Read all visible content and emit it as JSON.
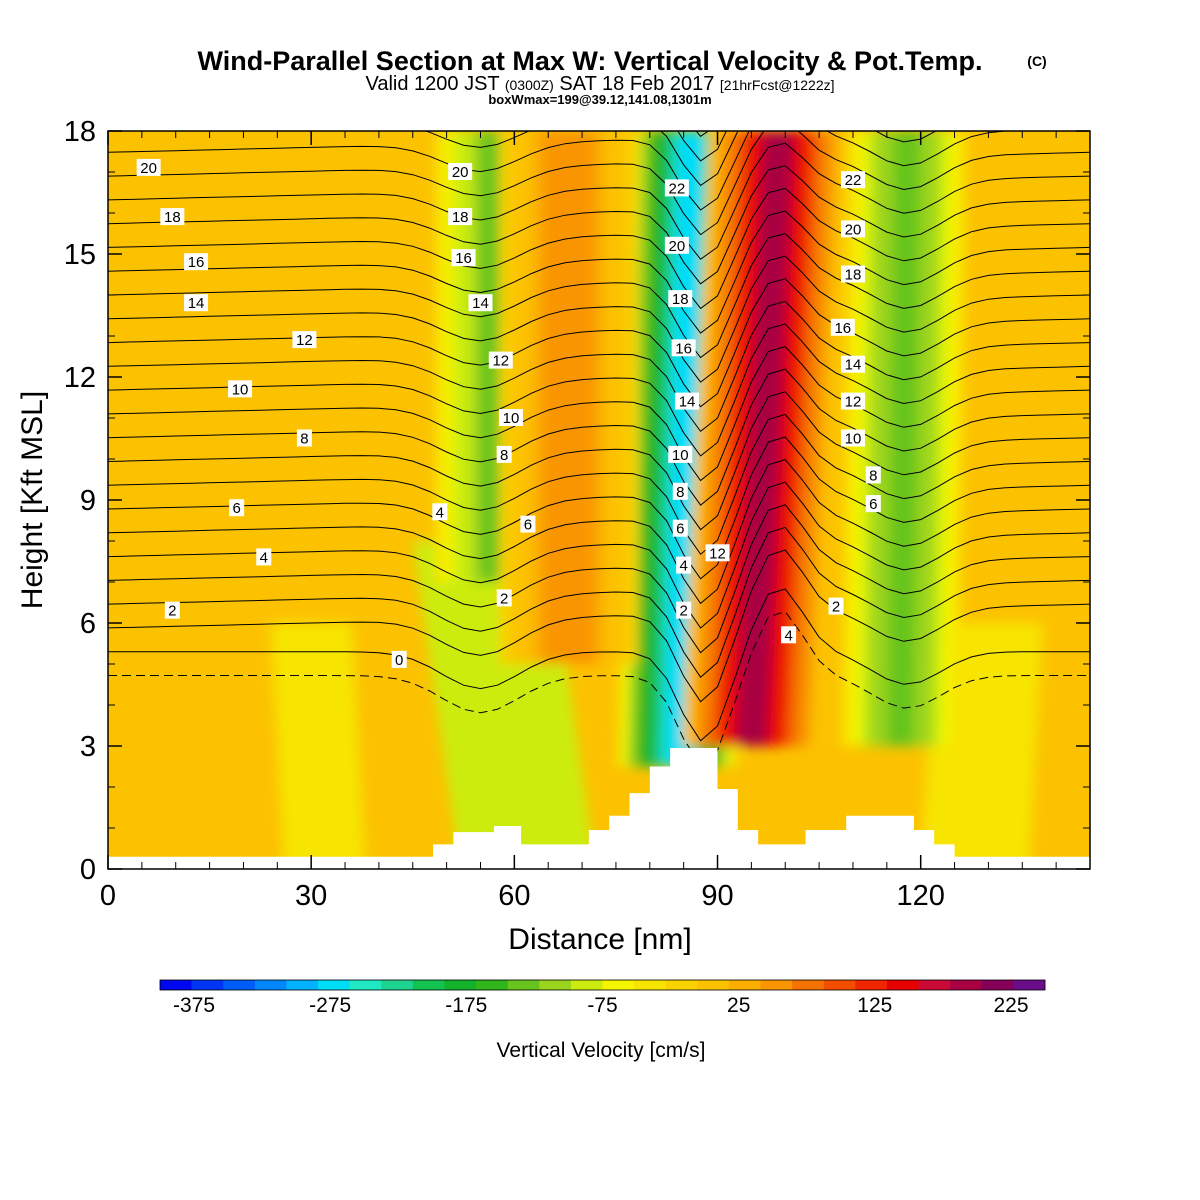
{
  "title": {
    "main": "Wind-Parallel Section at Max W: Vertical Velocity & Pot.Temp.",
    "copyright": "(C)",
    "valid_prefix": "Valid 1200 JST",
    "valid_z": "(0300Z)",
    "valid_date": "SAT 18 Feb 2017",
    "valid_fcst": "[21hrFcst@1222z]",
    "box_info": "boxWmax=199@39.12,141.08,1301m"
  },
  "chart_data": {
    "type": "heatmap",
    "xlabel": "Distance [nm]",
    "ylabel": "Height [Kft MSL]",
    "xlim": [
      0,
      145
    ],
    "ylim": [
      0,
      18
    ],
    "x_ticks": [
      0,
      30,
      60,
      90,
      120
    ],
    "y_ticks": [
      0,
      3,
      6,
      9,
      12,
      15,
      18
    ],
    "colorbar": {
      "label": "Vertical Velocity [cm/s]",
      "min": -400,
      "max": 250,
      "step": 25,
      "tick_values": [
        -375,
        -275,
        -175,
        -75,
        25,
        125,
        225
      ],
      "tick_labels": [
        "-375",
        "-275",
        "-175",
        "-75",
        "25",
        "125",
        "225"
      ],
      "colors": [
        "#0008ef",
        "#0035f5",
        "#005dfa",
        "#0087fd",
        "#00b2ff",
        "#00ddf7",
        "#1fe8c2",
        "#1ed38f",
        "#12c44f",
        "#12b22a",
        "#30b51a",
        "#66c41c",
        "#9bd41d",
        "#ccec10",
        "#f6f500",
        "#f7e400",
        "#fad200",
        "#fcc200",
        "#fbad00",
        "#f99500",
        "#f57200",
        "#f34e00",
        "#ef2600",
        "#e60000",
        "#c90a36",
        "#a80042",
        "#86005a",
        "#6b0c8a"
      ]
    },
    "shaded_field": {
      "name": "Vertical Velocity",
      "units": "cm/s",
      "features": [
        {
          "kind": "downdraft",
          "x_start": 84,
          "x_top": 86,
          "min_value": -260,
          "height_range": [
            2.5,
            18
          ]
        },
        {
          "kind": "updraft",
          "x_start": 95,
          "x_top": 99,
          "max_value": 230,
          "height_range": [
            3,
            18
          ]
        },
        {
          "kind": "downdraft",
          "x_start": 117,
          "x_top": 118,
          "min_value": -120,
          "height_range": [
            3,
            18
          ]
        },
        {
          "kind": "downdraft",
          "x_start": 57,
          "x_top": 57,
          "min_value": -110,
          "height_range": [
            7,
            18
          ]
        },
        {
          "kind": "updraft",
          "x_start": 68,
          "x_top": 68,
          "max_value": 90,
          "height_range": [
            5,
            18
          ]
        }
      ]
    },
    "potential_temperature_contours": {
      "name": "Pot.Temp.",
      "units": "°C",
      "interval": 1,
      "levels": [
        -1,
        0,
        1,
        2,
        3,
        4,
        5,
        6,
        7,
        8,
        9,
        10,
        11,
        12,
        13,
        14,
        15,
        16,
        17,
        18,
        19,
        20,
        21,
        22,
        23,
        24,
        25
      ],
      "labels": [
        {
          "text": "20",
          "x": 6,
          "y": 17.1
        },
        {
          "text": "18",
          "x": 9.5,
          "y": 15.9
        },
        {
          "text": "16",
          "x": 13,
          "y": 14.8
        },
        {
          "text": "14",
          "x": 13,
          "y": 13.8
        },
        {
          "text": "12",
          "x": 29,
          "y": 12.9
        },
        {
          "text": "10",
          "x": 19.5,
          "y": 11.7
        },
        {
          "text": "8",
          "x": 29,
          "y": 10.5
        },
        {
          "text": "6",
          "x": 19,
          "y": 8.8
        },
        {
          "text": "4",
          "x": 23,
          "y": 7.6
        },
        {
          "text": "2",
          "x": 9.5,
          "y": 6.3
        },
        {
          "text": "0",
          "x": 43,
          "y": 5.1
        },
        {
          "text": "20",
          "x": 52,
          "y": 17.0
        },
        {
          "text": "18",
          "x": 52,
          "y": 15.9
        },
        {
          "text": "16",
          "x": 52.5,
          "y": 14.9
        },
        {
          "text": "14",
          "x": 55,
          "y": 13.8
        },
        {
          "text": "12",
          "x": 58,
          "y": 12.4
        },
        {
          "text": "10",
          "x": 59.5,
          "y": 11.0
        },
        {
          "text": "8",
          "x": 58.5,
          "y": 10.1
        },
        {
          "text": "4",
          "x": 49,
          "y": 8.7
        },
        {
          "text": "6",
          "x": 62,
          "y": 8.4
        },
        {
          "text": "2",
          "x": 58.5,
          "y": 6.6
        },
        {
          "text": "22",
          "x": 84,
          "y": 16.6
        },
        {
          "text": "20",
          "x": 84,
          "y": 15.2
        },
        {
          "text": "18",
          "x": 84.5,
          "y": 13.9
        },
        {
          "text": "16",
          "x": 85,
          "y": 12.7
        },
        {
          "text": "14",
          "x": 85.5,
          "y": 11.4
        },
        {
          "text": "10",
          "x": 84.5,
          "y": 10.1
        },
        {
          "text": "8",
          "x": 84.5,
          "y": 9.2
        },
        {
          "text": "6",
          "x": 84.5,
          "y": 8.3
        },
        {
          "text": "12",
          "x": 90,
          "y": 7.7
        },
        {
          "text": "4",
          "x": 85,
          "y": 7.4
        },
        {
          "text": "2",
          "x": 85,
          "y": 6.3
        },
        {
          "text": "4",
          "x": 100.5,
          "y": 5.7
        },
        {
          "text": "2",
          "x": 107.5,
          "y": 6.4
        },
        {
          "text": "22",
          "x": 110,
          "y": 16.8
        },
        {
          "text": "20",
          "x": 110,
          "y": 15.6
        },
        {
          "text": "18",
          "x": 110,
          "y": 14.5
        },
        {
          "text": "16",
          "x": 108.5,
          "y": 13.2
        },
        {
          "text": "14",
          "x": 110,
          "y": 12.3
        },
        {
          "text": "12",
          "x": 110,
          "y": 11.4
        },
        {
          "text": "10",
          "x": 110,
          "y": 10.5
        },
        {
          "text": "8",
          "x": 113,
          "y": 9.6
        },
        {
          "text": "6",
          "x": 113,
          "y": 8.9
        }
      ]
    },
    "terrain": {
      "description": "blocky terrain profile at bottom (height kft vs distance nm)",
      "profile": [
        [
          0,
          0.3
        ],
        [
          48,
          0.3
        ],
        [
          48,
          0.6
        ],
        [
          51,
          0.6
        ],
        [
          51,
          0.9
        ],
        [
          57,
          0.9
        ],
        [
          57,
          1.05
        ],
        [
          61,
          1.05
        ],
        [
          61,
          0.6
        ],
        [
          71,
          0.6
        ],
        [
          71,
          0.95
        ],
        [
          74,
          0.95
        ],
        [
          74,
          1.3
        ],
        [
          77,
          1.3
        ],
        [
          77,
          1.85
        ],
        [
          80,
          1.85
        ],
        [
          80,
          2.5
        ],
        [
          83,
          2.5
        ],
        [
          83,
          2.95
        ],
        [
          90,
          2.95
        ],
        [
          90,
          1.95
        ],
        [
          93,
          1.95
        ],
        [
          93,
          0.95
        ],
        [
          96,
          0.95
        ],
        [
          96,
          0.6
        ],
        [
          103,
          0.6
        ],
        [
          103,
          0.95
        ],
        [
          109,
          0.95
        ],
        [
          109,
          1.3
        ],
        [
          119,
          1.3
        ],
        [
          119,
          0.95
        ],
        [
          122,
          0.95
        ],
        [
          122,
          0.6
        ],
        [
          125,
          0.6
        ],
        [
          125,
          0.3
        ],
        [
          145,
          0.3
        ]
      ]
    }
  }
}
